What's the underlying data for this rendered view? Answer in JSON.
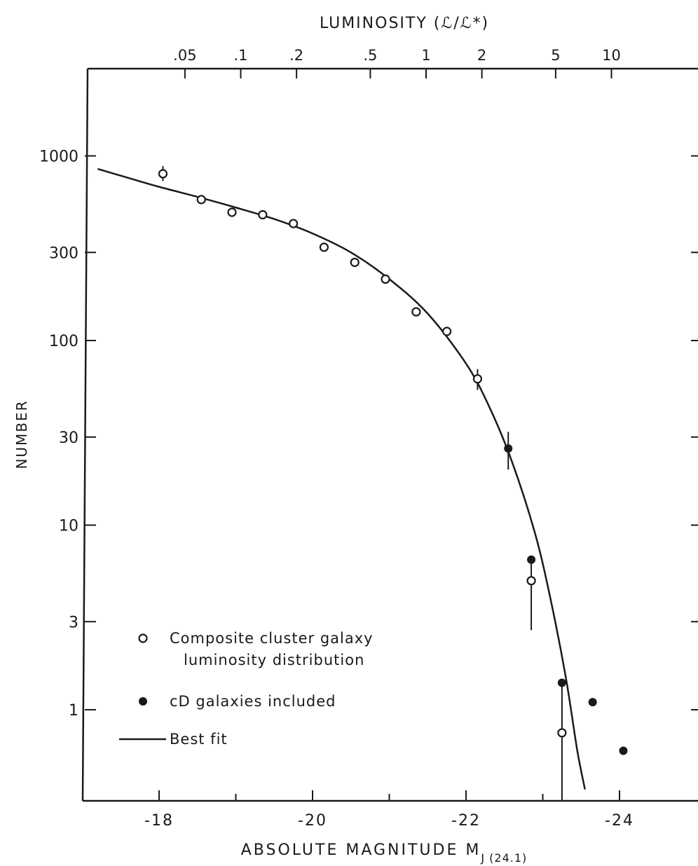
{
  "chart_data": {
    "type": "scatter",
    "title": "",
    "xlabel": "ABSOLUTE MAGNITUDE M",
    "xlabel_subscript": "J (24.1)",
    "ylabel": "NUMBER",
    "top_axis_label": "LUMINOSITY (ℒ/ℒ*)",
    "x_axis": {
      "range": [
        -17.2,
        -25.0
      ],
      "direction": "reversed",
      "ticks": [
        -18,
        -20,
        -22,
        -24
      ],
      "tick_labels": [
        "-18",
        "-20",
        "-22",
        "-24"
      ]
    },
    "y_axis": {
      "scale": "log",
      "range": [
        0.35,
        3500
      ],
      "ticks": [
        1,
        3,
        10,
        30,
        100,
        300,
        1000
      ],
      "tick_labels": [
        "1",
        "3",
        "10",
        "30",
        "100",
        "300",
        "1000"
      ]
    },
    "top_axis": {
      "ticks": [
        0.05,
        0.1,
        0.2,
        0.5,
        1,
        2,
        5,
        10
      ],
      "tick_labels": [
        ".05",
        ".1",
        ".2",
        ".5",
        "1",
        "2",
        "5",
        "10"
      ]
    },
    "grid": false,
    "legend_position": "bottom-left",
    "legend": [
      {
        "marker": "open-circle",
        "label_lines": [
          "Composite cluster galaxy",
          "luminosity distribution"
        ]
      },
      {
        "marker": "filled-circle",
        "label_lines": [
          "cD galaxies included"
        ]
      },
      {
        "marker": "line",
        "label_lines": [
          "Best fit"
        ]
      }
    ],
    "series": [
      {
        "name": "Composite cluster galaxy luminosity distribution",
        "marker": "open-circle",
        "points": [
          {
            "x": -18.05,
            "y": 800,
            "err": [
              730,
              880
            ]
          },
          {
            "x": -18.55,
            "y": 580
          },
          {
            "x": -18.95,
            "y": 495
          },
          {
            "x": -19.35,
            "y": 480
          },
          {
            "x": -19.75,
            "y": 430
          },
          {
            "x": -20.15,
            "y": 320
          },
          {
            "x": -20.55,
            "y": 265
          },
          {
            "x": -20.95,
            "y": 215
          },
          {
            "x": -21.35,
            "y": 143
          },
          {
            "x": -21.75,
            "y": 112
          },
          {
            "x": -22.15,
            "y": 62,
            "err": [
              54,
              70
            ]
          },
          {
            "x": -22.85,
            "y": 5,
            "err": [
              2.7,
              6.3
            ]
          },
          {
            "x": -23.25,
            "y": 0.75,
            "err": [
              0.2,
              1.0
            ]
          }
        ]
      },
      {
        "name": "cD galaxies included",
        "marker": "filled-circle",
        "points": [
          {
            "x": -22.55,
            "y": 26,
            "err": [
              20,
              32
            ]
          },
          {
            "x": -22.85,
            "y": 6.5
          },
          {
            "x": -23.25,
            "y": 1.4,
            "err": [
              1.0,
              1.4
            ]
          },
          {
            "x": -23.65,
            "y": 1.1
          },
          {
            "x": -24.05,
            "y": 0.6
          }
        ]
      },
      {
        "name": "Best fit",
        "marker": "line",
        "points": [
          {
            "x": -17.2,
            "y": 850
          },
          {
            "x": -17.6,
            "y": 760
          },
          {
            "x": -18.0,
            "y": 680
          },
          {
            "x": -18.5,
            "y": 600
          },
          {
            "x": -19.0,
            "y": 525
          },
          {
            "x": -19.5,
            "y": 455
          },
          {
            "x": -20.0,
            "y": 380
          },
          {
            "x": -20.5,
            "y": 300
          },
          {
            "x": -21.0,
            "y": 215
          },
          {
            "x": -21.5,
            "y": 140
          },
          {
            "x": -22.0,
            "y": 75
          },
          {
            "x": -22.3,
            "y": 44
          },
          {
            "x": -22.6,
            "y": 22
          },
          {
            "x": -22.9,
            "y": 9
          },
          {
            "x": -23.1,
            "y": 4
          },
          {
            "x": -23.3,
            "y": 1.5
          },
          {
            "x": -23.45,
            "y": 0.6
          },
          {
            "x": -23.55,
            "y": 0.37
          }
        ]
      }
    ]
  }
}
